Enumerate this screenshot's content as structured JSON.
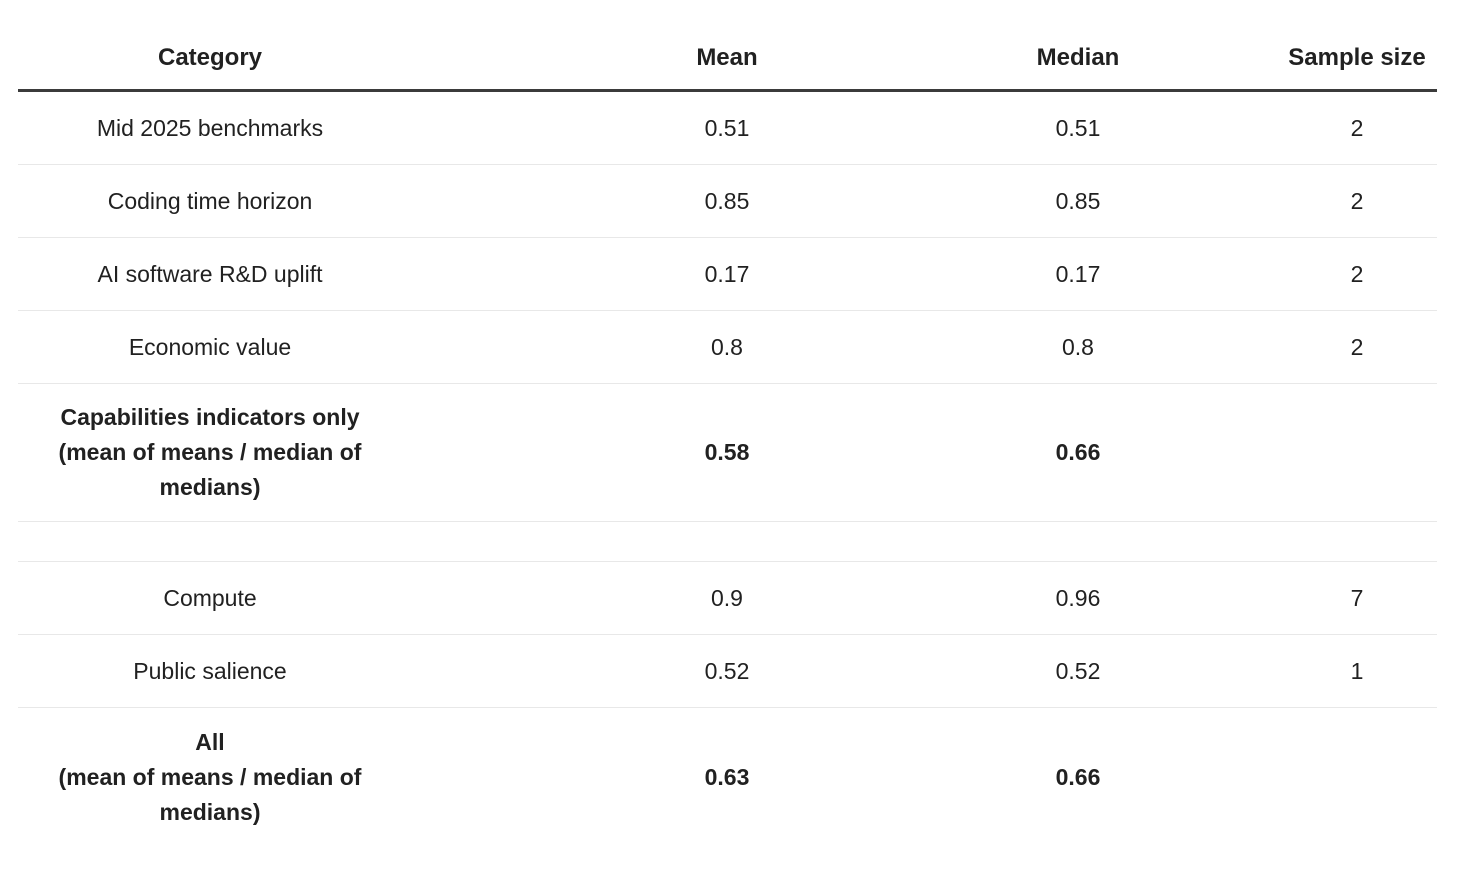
{
  "colors": {
    "background": "#ffffff",
    "text": "#212121",
    "header_rule": "#3b3b3b",
    "row_divider": "#e8e8e8"
  },
  "table": {
    "columns": [
      "Category",
      "Mean",
      "Median",
      "Sample size"
    ],
    "rows": [
      {
        "kind": "data",
        "category": "Mid 2025 benchmarks",
        "mean": "0.51",
        "median": "0.51",
        "sample_size": "2"
      },
      {
        "kind": "data",
        "category": "Coding time horizon",
        "mean": "0.85",
        "median": "0.85",
        "sample_size": "2"
      },
      {
        "kind": "data",
        "category": "AI software R&D uplift",
        "mean": "0.17",
        "median": "0.17",
        "sample_size": "2"
      },
      {
        "kind": "data",
        "category": "Economic value",
        "mean": "0.8",
        "median": "0.8",
        "sample_size": "2"
      },
      {
        "kind": "summary",
        "category": "Capabilities indicators only\n(mean of means / median of\nmedians)",
        "mean": "0.58",
        "median": "0.66",
        "sample_size": ""
      },
      {
        "kind": "spacer",
        "category": "",
        "mean": "",
        "median": "",
        "sample_size": ""
      },
      {
        "kind": "data",
        "category": "Compute",
        "mean": "0.9",
        "median": "0.96",
        "sample_size": "7"
      },
      {
        "kind": "data",
        "category": "Public salience",
        "mean": "0.52",
        "median": "0.52",
        "sample_size": "1"
      },
      {
        "kind": "summary",
        "category": "All\n(mean of means / median of\nmedians)",
        "mean": "0.63",
        "median": "0.66",
        "sample_size": "",
        "last": true
      }
    ]
  },
  "chart_data": {
    "type": "table",
    "columns": [
      "Category",
      "Mean",
      "Median",
      "Sample size"
    ],
    "rows": [
      [
        "Mid 2025 benchmarks",
        0.51,
        0.51,
        2
      ],
      [
        "Coding time horizon",
        0.85,
        0.85,
        2
      ],
      [
        "AI software R&D uplift",
        0.17,
        0.17,
        2
      ],
      [
        "Economic value",
        0.8,
        0.8,
        2
      ],
      [
        "Capabilities indicators only (mean of means / median of medians)",
        0.58,
        0.66,
        null
      ],
      [
        "Compute",
        0.9,
        0.96,
        7
      ],
      [
        "Public salience",
        0.52,
        0.52,
        1
      ],
      [
        "All (mean of means / median of medians)",
        0.63,
        0.66,
        null
      ]
    ]
  }
}
